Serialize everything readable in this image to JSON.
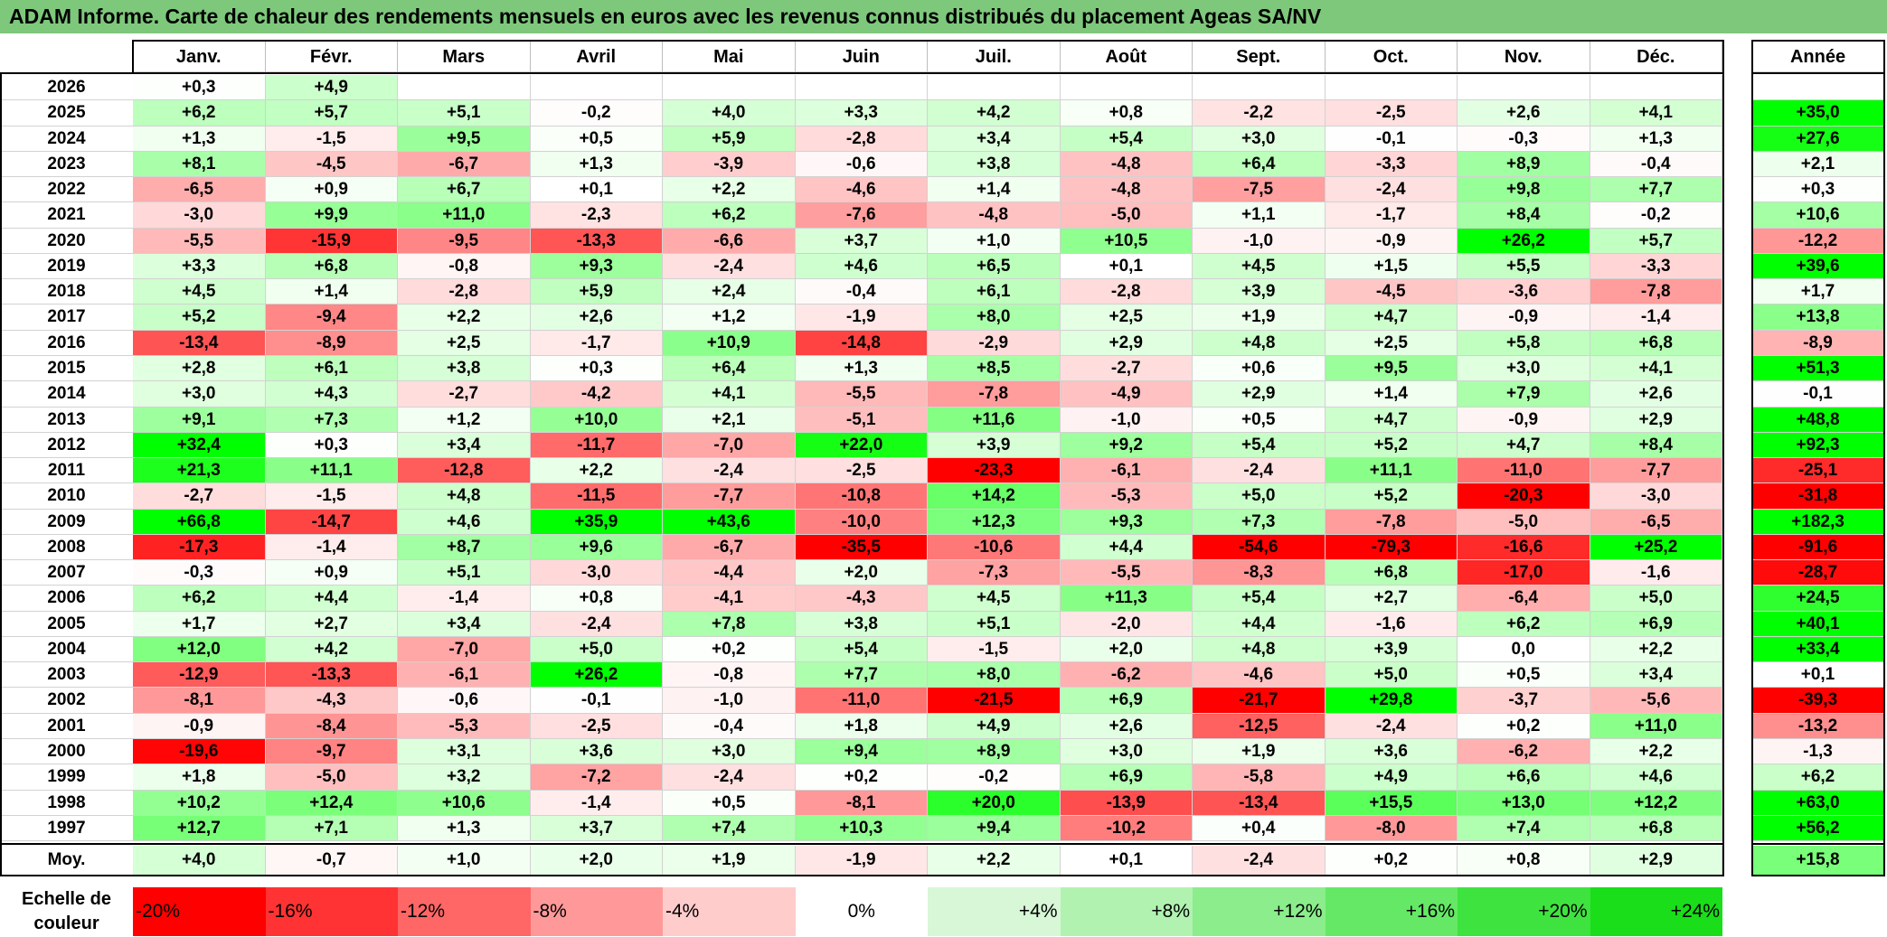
{
  "title": "ADAM Informe. Carte de chaleur des rendements mensuels en euros avec les revenus connus distribués du placement Ageas SA/NV",
  "chart_data": {
    "type": "heatmap",
    "title": "ADAM Informe. Carte de chaleur des rendements mensuels en euros avec les revenus connus distribués du placement Ageas SA/NV",
    "months": [
      "Janv.",
      "Févr.",
      "Mars",
      "Avril",
      "Mai",
      "Juin",
      "Juil.",
      "Août",
      "Sept.",
      "Oct.",
      "Nov.",
      "Déc."
    ],
    "annual_label": "Année",
    "rows": [
      {
        "year": "2026",
        "values": [
          "+0,3",
          "+4,9",
          "",
          "",
          "",
          "",
          "",
          "",
          "",
          "",
          "",
          ""
        ],
        "annual": ""
      },
      {
        "year": "2025",
        "values": [
          "+6,2",
          "+5,7",
          "+5,1",
          "-0,2",
          "+4,0",
          "+3,3",
          "+4,2",
          "+0,8",
          "-2,2",
          "-2,5",
          "+2,6",
          "+4,1"
        ],
        "annual": "+35,0"
      },
      {
        "year": "2024",
        "values": [
          "+1,3",
          "-1,5",
          "+9,5",
          "+0,5",
          "+5,9",
          "-2,8",
          "+3,4",
          "+5,4",
          "+3,0",
          "-0,1",
          "-0,3",
          "+1,3"
        ],
        "annual": "+27,6"
      },
      {
        "year": "2023",
        "values": [
          "+8,1",
          "-4,5",
          "-6,7",
          "+1,3",
          "-3,9",
          "-0,6",
          "+3,8",
          "-4,8",
          "+6,4",
          "-3,3",
          "+8,9",
          "-0,4"
        ],
        "annual": "+2,1"
      },
      {
        "year": "2022",
        "values": [
          "-6,5",
          "+0,9",
          "+6,7",
          "+0,1",
          "+2,2",
          "-4,6",
          "+1,4",
          "-4,8",
          "-7,5",
          "-2,4",
          "+9,8",
          "+7,7"
        ],
        "annual": "+0,3"
      },
      {
        "year": "2021",
        "values": [
          "-3,0",
          "+9,9",
          "+11,0",
          "-2,3",
          "+6,2",
          "-7,6",
          "-4,8",
          "-5,0",
          "+1,1",
          "-1,7",
          "+8,4",
          "-0,2"
        ],
        "annual": "+10,6"
      },
      {
        "year": "2020",
        "values": [
          "-5,5",
          "-15,9",
          "-9,5",
          "-13,3",
          "-6,6",
          "+3,7",
          "+1,0",
          "+10,5",
          "-1,0",
          "-0,9",
          "+26,2",
          "+5,7"
        ],
        "annual": "-12,2"
      },
      {
        "year": "2019",
        "values": [
          "+3,3",
          "+6,8",
          "-0,8",
          "+9,3",
          "-2,4",
          "+4,6",
          "+6,5",
          "+0,1",
          "+4,5",
          "+1,5",
          "+5,5",
          "-3,3"
        ],
        "annual": "+39,6"
      },
      {
        "year": "2018",
        "values": [
          "+4,5",
          "+1,4",
          "-2,8",
          "+5,9",
          "+2,4",
          "-0,4",
          "+6,1",
          "-2,8",
          "+3,9",
          "-4,5",
          "-3,6",
          "-7,8"
        ],
        "annual": "+1,7"
      },
      {
        "year": "2017",
        "values": [
          "+5,2",
          "-9,4",
          "+2,2",
          "+2,6",
          "+1,2",
          "-1,9",
          "+8,0",
          "+2,5",
          "+1,9",
          "+4,7",
          "-0,9",
          "-1,4"
        ],
        "annual": "+13,8"
      },
      {
        "year": "2016",
        "values": [
          "-13,4",
          "-8,9",
          "+2,5",
          "-1,7",
          "+10,9",
          "-14,8",
          "-2,9",
          "+2,9",
          "+4,8",
          "+2,5",
          "+5,8",
          "+6,8"
        ],
        "annual": "-8,9"
      },
      {
        "year": "2015",
        "values": [
          "+2,8",
          "+6,1",
          "+3,8",
          "+0,3",
          "+6,4",
          "+1,3",
          "+8,5",
          "-2,7",
          "+0,6",
          "+9,5",
          "+3,0",
          "+4,1"
        ],
        "annual": "+51,3"
      },
      {
        "year": "2014",
        "values": [
          "+3,0",
          "+4,3",
          "-2,7",
          "-4,2",
          "+4,1",
          "-5,5",
          "-7,8",
          "-4,9",
          "+2,9",
          "+1,4",
          "+7,9",
          "+2,6"
        ],
        "annual": "-0,1"
      },
      {
        "year": "2013",
        "values": [
          "+9,1",
          "+7,3",
          "+1,2",
          "+10,0",
          "+2,1",
          "-5,1",
          "+11,6",
          "-1,0",
          "+0,5",
          "+4,7",
          "-0,9",
          "+2,9"
        ],
        "annual": "+48,8"
      },
      {
        "year": "2012",
        "values": [
          "+32,4",
          "+0,3",
          "+3,4",
          "-11,7",
          "-7,0",
          "+22,0",
          "+3,9",
          "+9,2",
          "+5,4",
          "+5,2",
          "+4,7",
          "+8,4"
        ],
        "annual": "+92,3"
      },
      {
        "year": "2011",
        "values": [
          "+21,3",
          "+11,1",
          "-12,8",
          "+2,2",
          "-2,4",
          "-2,5",
          "-23,3",
          "-6,1",
          "-2,4",
          "+11,1",
          "-11,0",
          "-7,7"
        ],
        "annual": "-25,1"
      },
      {
        "year": "2010",
        "values": [
          "-2,7",
          "-1,5",
          "+4,8",
          "-11,5",
          "-7,7",
          "-10,8",
          "+14,2",
          "-5,3",
          "+5,0",
          "+5,2",
          "-20,3",
          "-3,0"
        ],
        "annual": "-31,8"
      },
      {
        "year": "2009",
        "values": [
          "+66,8",
          "-14,7",
          "+4,6",
          "+35,9",
          "+43,6",
          "-10,0",
          "+12,3",
          "+9,3",
          "+7,3",
          "-7,8",
          "-5,0",
          "-6,5"
        ],
        "annual": "+182,3"
      },
      {
        "year": "2008",
        "values": [
          "-17,3",
          "-1,4",
          "+8,7",
          "+9,6",
          "-6,7",
          "-35,5",
          "-10,6",
          "+4,4",
          "-54,6",
          "-79,3",
          "-16,6",
          "+25,2"
        ],
        "annual": "-91,6"
      },
      {
        "year": "2007",
        "values": [
          "-0,3",
          "+0,9",
          "+5,1",
          "-3,0",
          "-4,4",
          "+2,0",
          "-7,3",
          "-5,5",
          "-8,3",
          "+6,8",
          "-17,0",
          "-1,6"
        ],
        "annual": "-28,7"
      },
      {
        "year": "2006",
        "values": [
          "+6,2",
          "+4,4",
          "-1,4",
          "+0,8",
          "-4,1",
          "-4,3",
          "+4,5",
          "+11,3",
          "+5,4",
          "+2,7",
          "-6,4",
          "+5,0"
        ],
        "annual": "+24,5"
      },
      {
        "year": "2005",
        "values": [
          "+1,7",
          "+2,7",
          "+3,4",
          "-2,4",
          "+7,8",
          "+3,8",
          "+5,1",
          "-2,0",
          "+4,4",
          "-1,6",
          "+6,2",
          "+6,9"
        ],
        "annual": "+40,1"
      },
      {
        "year": "2004",
        "values": [
          "+12,0",
          "+4,2",
          "-7,0",
          "+5,0",
          "+0,2",
          "+5,4",
          "-1,5",
          "+2,0",
          "+4,8",
          "+3,9",
          "0,0",
          "+2,2"
        ],
        "annual": "+33,4"
      },
      {
        "year": "2003",
        "values": [
          "-12,9",
          "-13,3",
          "-6,1",
          "+26,2",
          "-0,8",
          "+7,7",
          "+8,0",
          "-6,2",
          "-4,6",
          "+5,0",
          "+0,5",
          "+3,4"
        ],
        "annual": "+0,1"
      },
      {
        "year": "2002",
        "values": [
          "-8,1",
          "-4,3",
          "-0,6",
          "-0,1",
          "-1,0",
          "-11,0",
          "-21,5",
          "+6,9",
          "-21,7",
          "+29,8",
          "-3,7",
          "-5,6"
        ],
        "annual": "-39,3"
      },
      {
        "year": "2001",
        "values": [
          "-0,9",
          "-8,4",
          "-5,3",
          "-2,5",
          "-0,4",
          "+1,8",
          "+4,9",
          "+2,6",
          "-12,5",
          "-2,4",
          "+0,2",
          "+11,0"
        ],
        "annual": "-13,2"
      },
      {
        "year": "2000",
        "values": [
          "-19,6",
          "-9,7",
          "+3,1",
          "+3,6",
          "+3,0",
          "+9,4",
          "+8,9",
          "+3,0",
          "+1,9",
          "+3,6",
          "-6,2",
          "+2,2"
        ],
        "annual": "-1,3"
      },
      {
        "year": "1999",
        "values": [
          "+1,8",
          "-5,0",
          "+3,2",
          "-7,2",
          "-2,4",
          "+0,2",
          "-0,2",
          "+6,9",
          "-5,8",
          "+4,9",
          "+6,6",
          "+4,6"
        ],
        "annual": "+6,2"
      },
      {
        "year": "1998",
        "values": [
          "+10,2",
          "+12,4",
          "+10,6",
          "-1,4",
          "+0,5",
          "-8,1",
          "+20,0",
          "-13,9",
          "-13,4",
          "+15,5",
          "+13,0",
          "+12,2"
        ],
        "annual": "+63,0"
      },
      {
        "year": "1997",
        "values": [
          "+12,7",
          "+7,1",
          "+1,3",
          "+3,7",
          "+7,4",
          "+10,3",
          "+9,4",
          "-10,2",
          "+0,4",
          "-8,0",
          "+7,4",
          "+6,8"
        ],
        "annual": "+56,2"
      }
    ],
    "average": {
      "label": "Moy.",
      "values": [
        "+4,0",
        "-0,7",
        "+1,0",
        "+2,0",
        "+1,9",
        "-1,9",
        "+2,2",
        "+0,1",
        "-2,4",
        "+0,2",
        "+0,8",
        "+2,9"
      ],
      "annual": "+15,8"
    },
    "color_scale": {
      "label_line1": "Echelle de",
      "label_line2": "couleur",
      "stops": [
        {
          "label": "-20%",
          "value": -20,
          "color": "#ff0000"
        },
        {
          "label": "-16%",
          "value": -16,
          "color": "#ff3333"
        },
        {
          "label": "-12%",
          "value": -12,
          "color": "#ff6666"
        },
        {
          "label": "-8%",
          "value": -8,
          "color": "#ff9999"
        },
        {
          "label": "-4%",
          "value": -4,
          "color": "#ffcccc"
        },
        {
          "label": "0%",
          "value": 0,
          "color": "#ffffff"
        },
        {
          "label": "+4%",
          "value": 4,
          "color": "#d7f7d7"
        },
        {
          "label": "+8%",
          "value": 8,
          "color": "#b1f2b1"
        },
        {
          "label": "+12%",
          "value": 12,
          "color": "#8bed8b"
        },
        {
          "label": "+16%",
          "value": 16,
          "color": "#65e865"
        },
        {
          "label": "+20%",
          "value": 20,
          "color": "#3fe33f"
        },
        {
          "label": "+24%",
          "value": 24,
          "color": "#19de19"
        }
      ]
    }
  }
}
